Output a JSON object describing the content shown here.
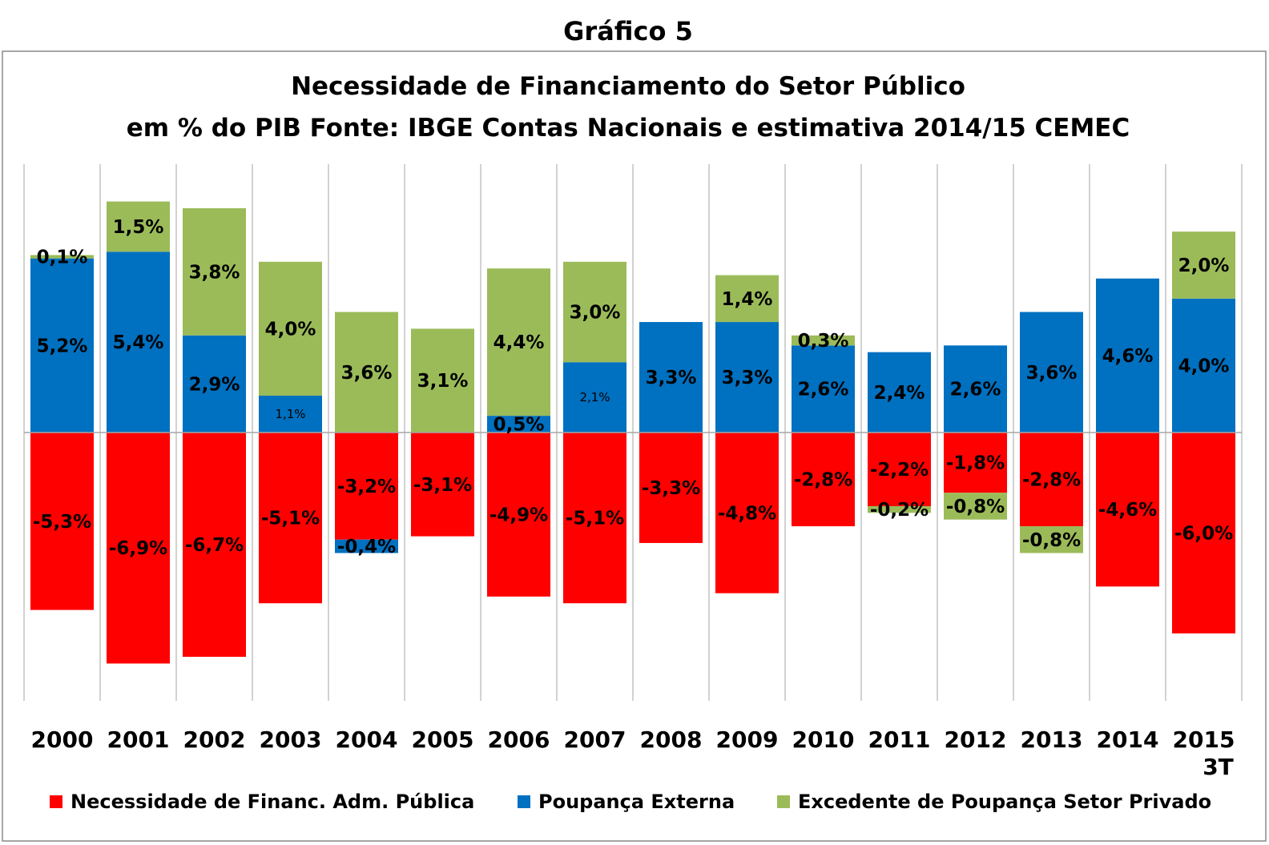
{
  "chart_data": {
    "type": "bar",
    "stacked": true,
    "figure_title": "Gráfico 5",
    "title": "Necessidade de Financiamento do Setor Público",
    "subtitle": "em % do PIB Fonte: IBGE Contas Nacionais e estimativa 2014/15 CEMEC",
    "categories": [
      "2000",
      "2001",
      "2002",
      "2003",
      "2004",
      "2005",
      "2006",
      "2007",
      "2008",
      "2009",
      "2010",
      "2011",
      "2012",
      "2013",
      "2014",
      "2015\n3T"
    ],
    "series": [
      {
        "name": "Necessidade de Financ. Adm. Pública",
        "color": "#ff0000",
        "values": [
          -5.3,
          -6.9,
          -6.7,
          -5.1,
          -3.2,
          -3.1,
          -4.9,
          -5.1,
          -3.3,
          -4.8,
          -2.8,
          -2.2,
          -1.8,
          -2.8,
          -4.6,
          -6.0
        ],
        "labels": [
          "-5,3%",
          "-6,9%",
          "-6,7%",
          "-5,1%",
          "-3,2%",
          "-3,1%",
          "-4,9%",
          "-5,1%",
          "-3,3%",
          "-4,8%",
          "-2,8%",
          "-2,2%",
          "-1,8%",
          "-2,8%",
          "-4,6%",
          "-6,0%"
        ]
      },
      {
        "name": "Poupança Externa",
        "color": "#0070c0",
        "values": [
          5.2,
          5.4,
          2.9,
          1.1,
          -0.4,
          0.0,
          0.5,
          2.1,
          3.3,
          3.3,
          2.6,
          2.4,
          2.6,
          3.6,
          4.6,
          4.0
        ],
        "labels": [
          "5,2%",
          "5,4%",
          "2,9%",
          "1,1%",
          "-0,4%",
          "",
          "0,5%",
          "2,1%",
          "3,3%",
          "3,3%",
          "2,6%",
          "2,4%",
          "2,6%",
          "3,6%",
          "4,6%",
          "4,0%"
        ]
      },
      {
        "name": "Excedente de Poupança Setor Privado",
        "color": "#9bbb59",
        "values": [
          0.1,
          1.5,
          3.8,
          4.0,
          3.6,
          3.1,
          4.4,
          3.0,
          0.0,
          1.4,
          0.3,
          -0.2,
          -0.8,
          -0.8,
          0.0,
          2.0
        ],
        "labels": [
          "0,1%",
          "1,5%",
          "3,8%",
          "4,0%",
          "3,6%",
          "3,1%",
          "4,4%",
          "3,0%",
          "",
          "1,4%",
          "0,3%",
          "-0,2%",
          "-0,8%",
          "-0,8%",
          "",
          "2,0%"
        ]
      }
    ],
    "ylim": [
      -8,
      8
    ],
    "legend_position": "bottom",
    "grid": false
  }
}
